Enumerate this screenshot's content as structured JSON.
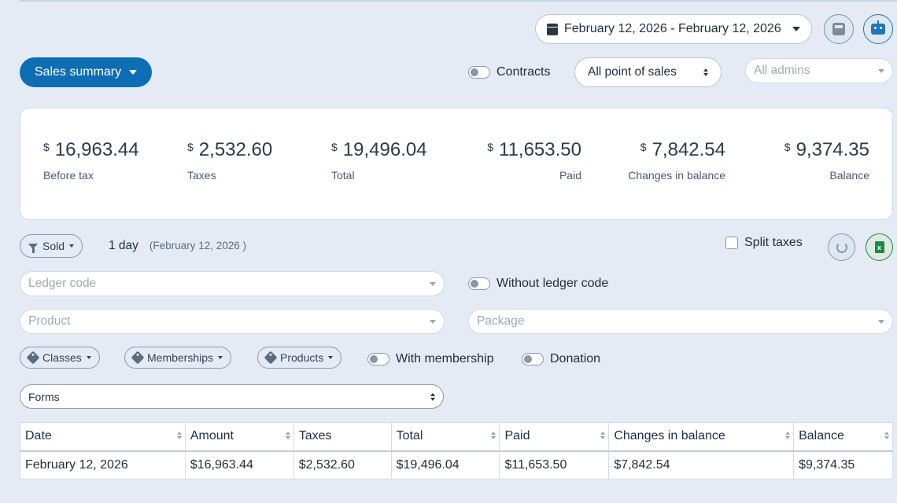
{
  "header": {
    "date_range": "February 12, 2026 - February 12, 2026",
    "icons": [
      "calendar-icon",
      "calculator-icon",
      "robot-icon"
    ]
  },
  "toolbar": {
    "report_button": "Sales summary",
    "contracts_label": "Contracts",
    "point_of_sales": "All point of sales",
    "admins_placeholder": "All admins"
  },
  "summary": {
    "currency": "$",
    "stats": [
      {
        "value": "16,963.44",
        "label": "Before tax"
      },
      {
        "value": "2,532.60",
        "label": "Taxes"
      },
      {
        "value": "19,496.04",
        "label": "Total"
      },
      {
        "value": "11,653.50",
        "label": "Paid"
      },
      {
        "value": "7,842.54",
        "label": "Changes in balance"
      },
      {
        "value": "9,374.35",
        "label": "Balance"
      }
    ]
  },
  "filters": {
    "sold_label": "Sold",
    "period": "1 day",
    "period_date": "(February 12, 2026 )",
    "split_taxes": "Split taxes",
    "ledger_code_placeholder": "Ledger code",
    "without_ledger_code": "Without ledger code",
    "product_placeholder": "Product",
    "package_placeholder": "Package",
    "classes": "Classes",
    "memberships": "Memberships",
    "products": "Products",
    "with_membership": "With membership",
    "donation": "Donation",
    "forms": "Forms"
  },
  "table": {
    "columns": [
      "Date",
      "Amount",
      "Taxes",
      "Total",
      "Paid",
      "Changes in balance",
      "Balance"
    ],
    "rows": [
      [
        "February 12, 2026",
        "$16,963.44",
        "$2,532.60",
        "$19,496.04",
        "$11,653.50",
        "$7,842.54",
        "$9,374.35"
      ]
    ]
  },
  "colors": {
    "background": "#e4ebf5",
    "primary": "#0d6eb4",
    "excel": "#1c8a42"
  }
}
